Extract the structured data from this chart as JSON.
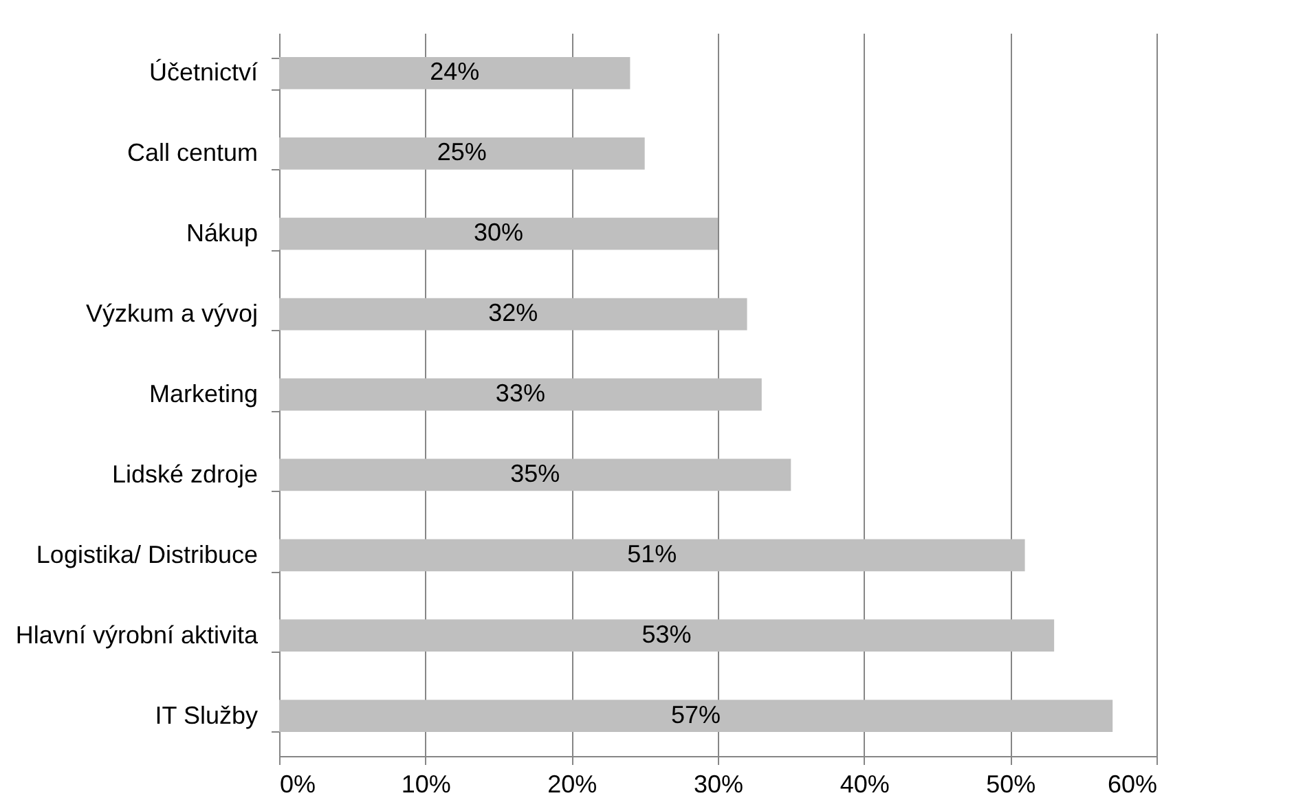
{
  "chart_data": {
    "type": "bar",
    "orientation": "horizontal",
    "categories": [
      "Účetnictví",
      "Call centum",
      "Nákup",
      "Výzkum a vývoj",
      "Marketing",
      "Lidské zdroje",
      "Logistika/ Distribuce",
      "Hlavní výrobní aktivita",
      "IT Služby"
    ],
    "values": [
      24,
      25,
      30,
      32,
      33,
      35,
      51,
      53,
      57
    ],
    "value_labels": [
      "24%",
      "25%",
      "30%",
      "32%",
      "33%",
      "35%",
      "51%",
      "53%",
      "57%"
    ],
    "color": "#bfbfbf",
    "xlim": [
      0,
      60
    ],
    "xticks": [
      {
        "value": 0,
        "label": "0%"
      },
      {
        "value": 10,
        "label": "10%"
      },
      {
        "value": 20,
        "label": "20%"
      },
      {
        "value": 30,
        "label": "30%"
      },
      {
        "value": 40,
        "label": "40%"
      },
      {
        "value": 50,
        "label": "50%"
      },
      {
        "value": 60,
        "label": "60%"
      }
    ],
    "grid": "x"
  }
}
